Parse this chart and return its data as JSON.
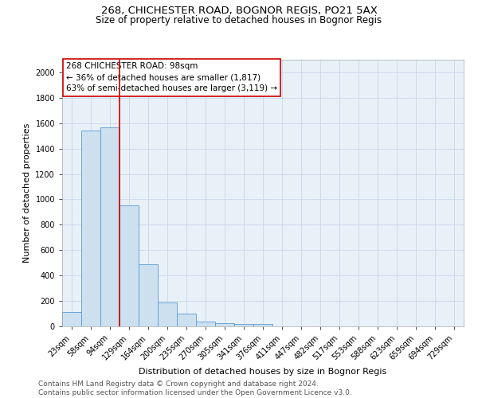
{
  "title1": "268, CHICHESTER ROAD, BOGNOR REGIS, PO21 5AX",
  "title2": "Size of property relative to detached houses in Bognor Regis",
  "xlabel": "Distribution of detached houses by size in Bognor Regis",
  "ylabel": "Number of detached properties",
  "bin_labels": [
    "23sqm",
    "58sqm",
    "94sqm",
    "129sqm",
    "164sqm",
    "200sqm",
    "235sqm",
    "270sqm",
    "305sqm",
    "341sqm",
    "376sqm",
    "411sqm",
    "447sqm",
    "482sqm",
    "517sqm",
    "553sqm",
    "588sqm",
    "623sqm",
    "659sqm",
    "694sqm",
    "729sqm"
  ],
  "bar_values": [
    110,
    1540,
    1570,
    950,
    490,
    185,
    100,
    40,
    25,
    20,
    20,
    0,
    0,
    0,
    0,
    0,
    0,
    0,
    0,
    0,
    0
  ],
  "bar_color": "#cce0f0",
  "bar_edge_color": "#5b9bd5",
  "grid_color": "#c8d8ea",
  "bg_color": "#e8f0f8",
  "vline_color": "#cc0000",
  "annotation_text": "268 CHICHESTER ROAD: 98sqm\n← 36% of detached houses are smaller (1,817)\n63% of semi-detached houses are larger (3,119) →",
  "annotation_box_color": "#cc0000",
  "annotation_box_facecolor": "white",
  "ylim": [
    0,
    2100
  ],
  "yticks": [
    0,
    200,
    400,
    600,
    800,
    1000,
    1200,
    1400,
    1600,
    1800,
    2000
  ],
  "footer": "Contains HM Land Registry data © Crown copyright and database right 2024.\nContains public sector information licensed under the Open Government Licence v3.0.",
  "title_fontsize": 9.5,
  "subtitle_fontsize": 8.5,
  "axis_label_fontsize": 8,
  "tick_fontsize": 7,
  "annotation_fontsize": 7.5,
  "footer_fontsize": 6.5
}
